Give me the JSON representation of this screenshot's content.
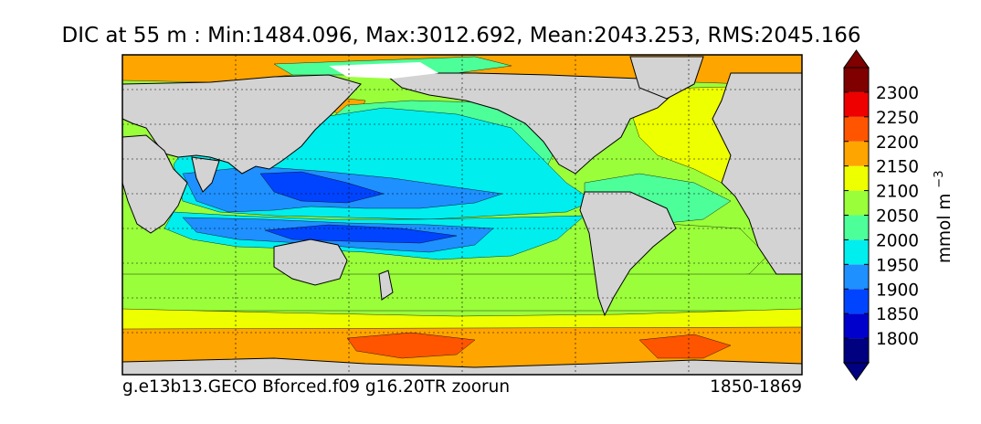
{
  "chart_data": {
    "type": "heatmap",
    "title": "DIC at 55 m : Min:1484.096, Max:3012.692, Mean:2043.253, RMS:2045.166",
    "variable": "DIC",
    "depth": "55 m",
    "stats": {
      "min": 1484.096,
      "max": 3012.692,
      "mean": 2043.253,
      "rms": 2045.166
    },
    "case_label": "g.e13b13.GECO Bforced.f09 g16.20TR zoorun",
    "period_label": "1850-1869",
    "map": {
      "projection": "cylindrical",
      "lon_range": [
        20,
        380
      ],
      "lat_range": [
        -80,
        90
      ],
      "grid": true,
      "land_color": "#d3d3d3"
    },
    "colorbar": {
      "units": "mmol m",
      "units_exponent": "−3",
      "levels": [
        "1800",
        "1850",
        "1900",
        "1950",
        "2000",
        "2050",
        "2100",
        "2150",
        "2200",
        "2250",
        "2300"
      ],
      "colors": [
        "#000080",
        "#0000cd",
        "#0044ff",
        "#1e90ff",
        "#00eeee",
        "#4dff99",
        "#9aff3a",
        "#eeff00",
        "#ffa500",
        "#ff5500",
        "#ee0000",
        "#800000"
      ],
      "extend": "both"
    }
  }
}
